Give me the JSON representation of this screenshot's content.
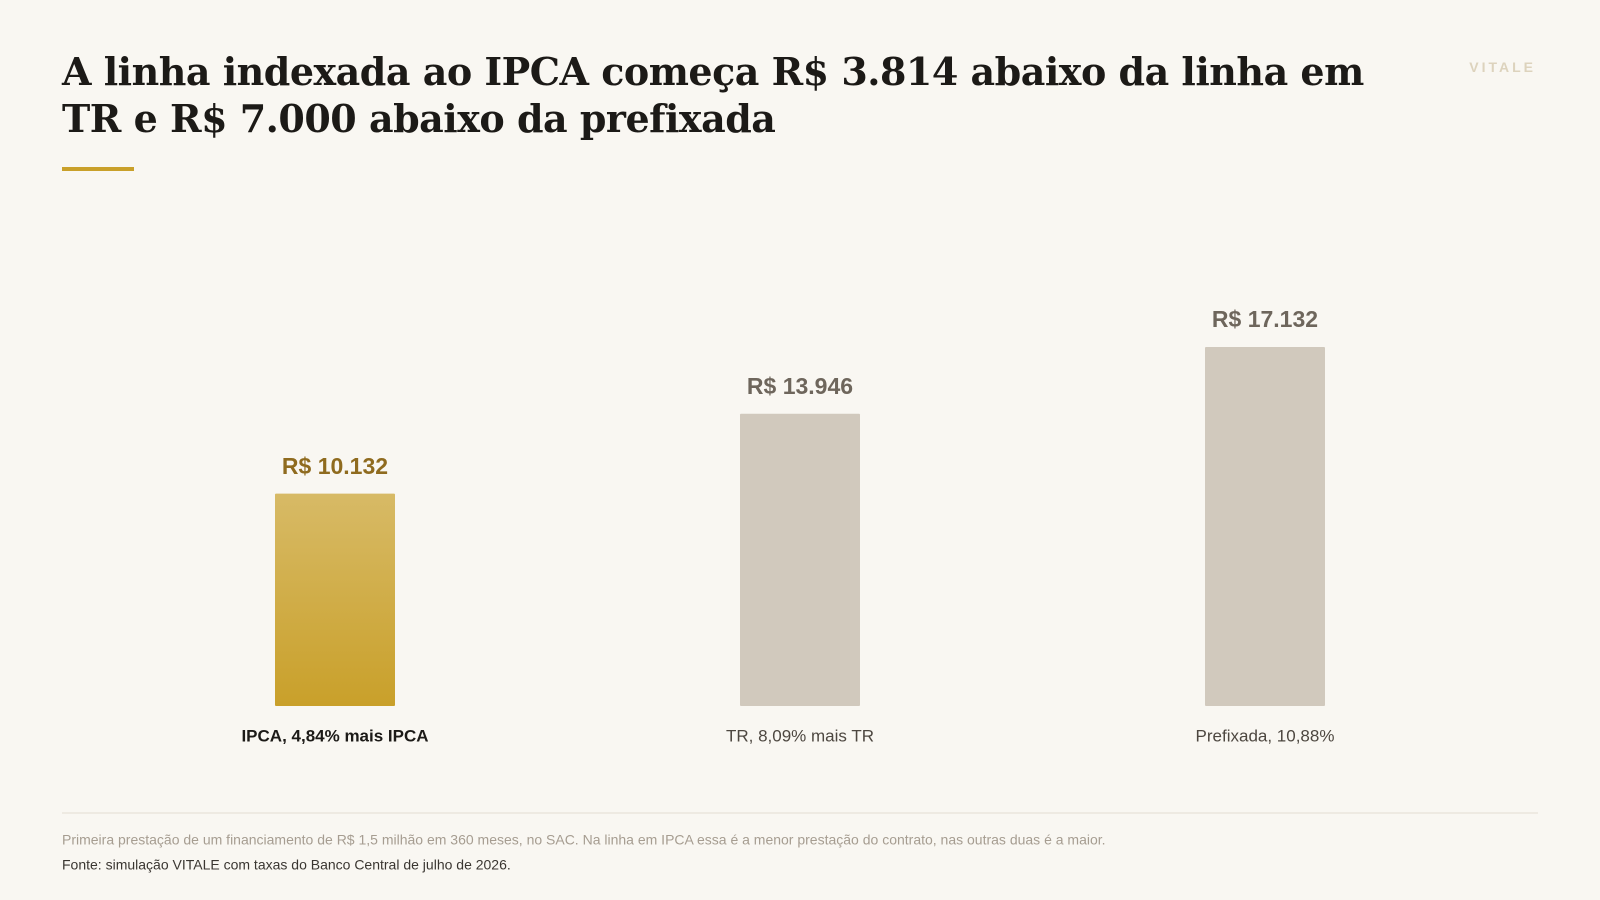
{
  "chart_data": {
    "type": "bar",
    "title": "A linha indexada ao IPCA começa R$ 3.814 abaixo da linha em TR e R$ 7.000 abaixo da prefixada",
    "brand": "VITALE",
    "categories": [
      "IPCA, 4,84% mais IPCA",
      "TR, 8,09% mais TR",
      "Prefixada, 10,88%"
    ],
    "values": [
      10132,
      13946,
      17132
    ],
    "value_labels": [
      "R$ 10.132",
      "R$ 13.946",
      "R$ 17.132"
    ],
    "colors": [
      "#c9a02a",
      "#d1c9bd",
      "#d1c9bd"
    ],
    "highlight": 0,
    "note": "Primeira prestação de um financiamento de R$ 1,5 milhão em 360 meses, no SAC. Na linha em IPCA essa é a menor prestação do contrato, nas outras duas é a maior.",
    "source": "Fonte: simulação VITALE com taxas do Banco Central de julho de 2026."
  }
}
